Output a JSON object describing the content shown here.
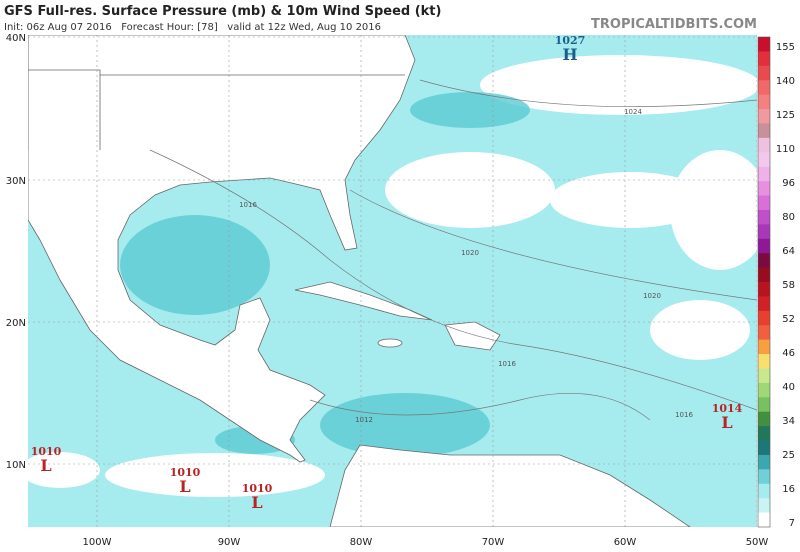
{
  "header": {
    "title": "GFS Full-res. Surface Pressure (mb) & 10m Wind Speed (kt)",
    "subtitle": "Init: 06z Aug 07 2016   Forecast Hour: [78]   valid at 12z Wed, Aug 10 2016",
    "brand": "TROPICALTIDBITS.COM"
  },
  "map": {
    "lat_labels": [
      "40N",
      "30N",
      "20N",
      "10N"
    ],
    "lon_labels": [
      "100W",
      "90W",
      "80W",
      "70W",
      "60W",
      "50W"
    ],
    "pressure_centers": [
      {
        "value": "1027",
        "letter": "H"
      },
      {
        "value": "1014",
        "letter": "L"
      },
      {
        "value": "1010",
        "letter": "L"
      },
      {
        "value": "1010",
        "letter": "L"
      },
      {
        "value": "1010",
        "letter": "L"
      }
    ],
    "isobar_labels": [
      "1024",
      "1016",
      "1020",
      "1020",
      "1016",
      "1012",
      "1016"
    ]
  },
  "colorbar": {
    "labels": [
      "155",
      "140",
      "125",
      "110",
      "96",
      "80",
      "64",
      "58",
      "52",
      "46",
      "40",
      "34",
      "25",
      "16",
      "7"
    ]
  }
}
